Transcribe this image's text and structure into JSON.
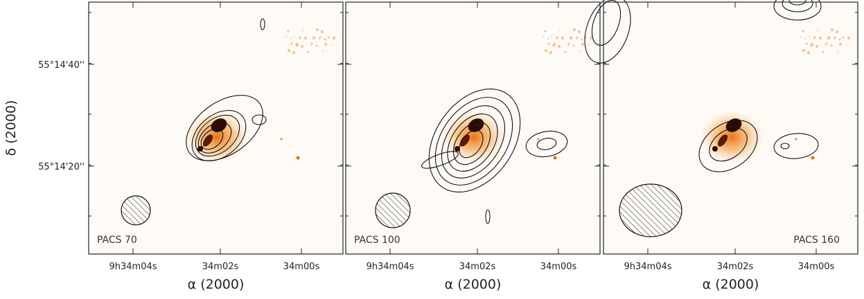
{
  "y_axis_label": "δ (2000)",
  "y_ticks": [
    "55°14'40''",
    "55°14'20''"
  ],
  "panels": [
    {
      "label": "PACS 70",
      "x_axis_label": "α (2000)",
      "x_ticks": [
        "9h34m04s",
        "34m02s",
        "34m00s"
      ]
    },
    {
      "label": "PACS 100",
      "x_axis_label": "α (2000)",
      "x_ticks": [
        "9h34m04s",
        "34m02s",
        "34m00s"
      ]
    },
    {
      "label": "PACS 160",
      "x_axis_label": "α (2000)",
      "x_ticks": [
        "9h34m04s",
        "34m02s",
        "34m00s"
      ]
    }
  ]
}
